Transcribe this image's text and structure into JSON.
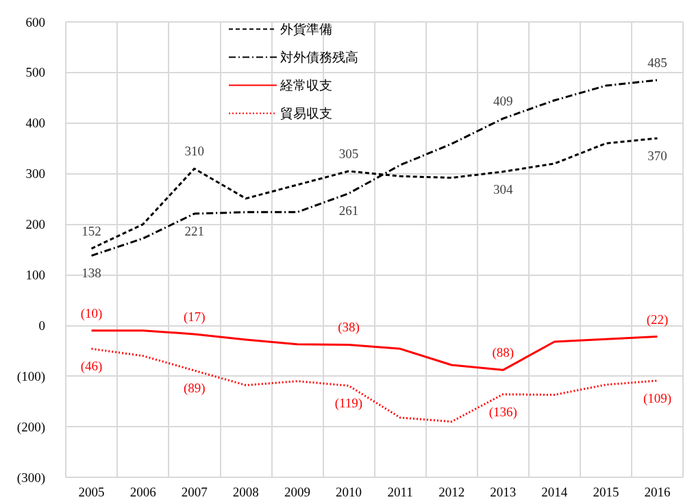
{
  "chart_data": {
    "type": "line",
    "categories": [
      "2005",
      "2006",
      "2007",
      "2008",
      "2009",
      "2010",
      "2011",
      "2012",
      "2013",
      "2014",
      "2015",
      "2016"
    ],
    "ylim": [
      -300,
      600
    ],
    "yticks": [
      {
        "value": -300,
        "label": "(300)"
      },
      {
        "value": -200,
        "label": "(200)"
      },
      {
        "value": -100,
        "label": "(100)"
      },
      0,
      100,
      200,
      300,
      400,
      500,
      600
    ],
    "grid": true,
    "legend": "top",
    "marker": "none",
    "series": [
      {
        "name": "外貨準備",
        "color": "#000000",
        "line_style": "dashed",
        "values": [
          152,
          200,
          310,
          251,
          278,
          305,
          295,
          292,
          304,
          320,
          360,
          370
        ],
        "value_labels": [
          "152",
          null,
          "310",
          null,
          null,
          "305",
          null,
          null,
          "304",
          null,
          null,
          "370"
        ]
      },
      {
        "name": "対外債務残高",
        "color": "#000000",
        "line_style": "dashdot",
        "values": [
          138,
          172,
          221,
          224,
          224,
          261,
          317,
          359,
          409,
          445,
          474,
          485
        ],
        "value_labels": [
          "138",
          null,
          "221",
          null,
          null,
          "261",
          null,
          null,
          "409",
          null,
          null,
          "485"
        ]
      },
      {
        "name": "経常収支",
        "color": "#ff0000",
        "line_style": "solid",
        "values": [
          -10,
          -10,
          -17,
          -28,
          -37,
          -38,
          -46,
          -78,
          -88,
          -32,
          -27,
          -22
        ],
        "value_labels": [
          "(10)",
          null,
          "(17)",
          null,
          null,
          "(38)",
          null,
          null,
          "(88)",
          null,
          null,
          "(22)"
        ]
      },
      {
        "name": "貿易収支",
        "color": "#ff0000",
        "line_style": "dotted",
        "values": [
          -46,
          -60,
          -89,
          -118,
          -110,
          -119,
          -182,
          -190,
          -136,
          -137,
          -117,
          -109
        ],
        "value_labels": [
          "(46)",
          null,
          "(89)",
          null,
          null,
          "(119)",
          null,
          null,
          "(136)",
          null,
          null,
          "(109)"
        ]
      }
    ]
  }
}
